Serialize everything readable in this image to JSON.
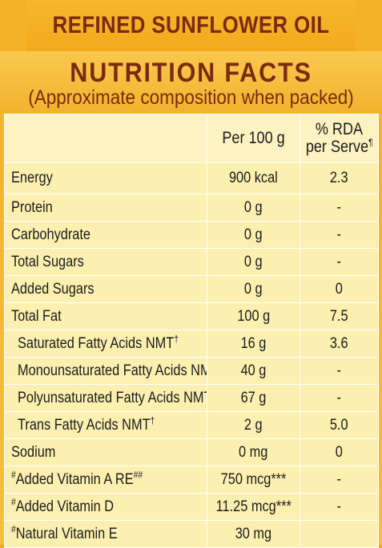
{
  "product": {
    "title": "REFINED SUNFLOWER OIL"
  },
  "header": {
    "title": "NUTRITION FACTS",
    "subtitle": "(Approximate composition when packed)"
  },
  "table": {
    "col_per100g": "Per 100 g",
    "col_rda_line1": "% RDA",
    "col_rda_line2": "per Serve",
    "col_rda_mark": "¶",
    "rows": [
      {
        "pre": "",
        "name": "Energy",
        "mark": "",
        "value": "900 kcal",
        "rda": "2.3"
      },
      {
        "pre": "",
        "name": "Protein",
        "mark": "",
        "value": "0 g",
        "rda": "-"
      },
      {
        "pre": "",
        "name": "Carbohydrate",
        "mark": "",
        "value": "0 g",
        "rda": "-"
      },
      {
        "pre": "",
        "name": "Total Sugars",
        "mark": "",
        "value": "0 g",
        "rda": "-"
      },
      {
        "pre": "",
        "name": "Added Sugars",
        "mark": "",
        "value": "0 g",
        "rda": "0"
      },
      {
        "pre": "",
        "name": "Total Fat",
        "mark": "",
        "value": "100 g",
        "rda": "7.5"
      },
      {
        "pre": "",
        "name": "Saturated Fatty Acids NMT",
        "mark": "†",
        "value": "16 g",
        "rda": "3.6"
      },
      {
        "pre": "",
        "name": "Monounsaturated Fatty Acids NMT",
        "mark": "†",
        "value": "40 g",
        "rda": "-"
      },
      {
        "pre": "",
        "name": "Polyunsaturated Fatty Acids NMT",
        "mark": "†",
        "value": "67 g",
        "rda": "-"
      },
      {
        "pre": "",
        "name": "Trans Fatty Acids NMT",
        "mark": "†",
        "value": "2 g",
        "rda": "5.0"
      },
      {
        "pre": "",
        "name": "Sodium",
        "mark": "",
        "value": "0 mg",
        "rda": "0"
      },
      {
        "pre": "#",
        "name": "Added Vitamin A RE",
        "mark": "##",
        "value": "750 mcg***",
        "rda": "-"
      },
      {
        "pre": "#",
        "name": "Added Vitamin D",
        "mark": "",
        "value": "11.25 mcg***",
        "rda": "-"
      },
      {
        "pre": "#",
        "name": "Natural Vitamin E",
        "mark": "",
        "value": "30 mg",
        "rda": ""
      }
    ]
  }
}
